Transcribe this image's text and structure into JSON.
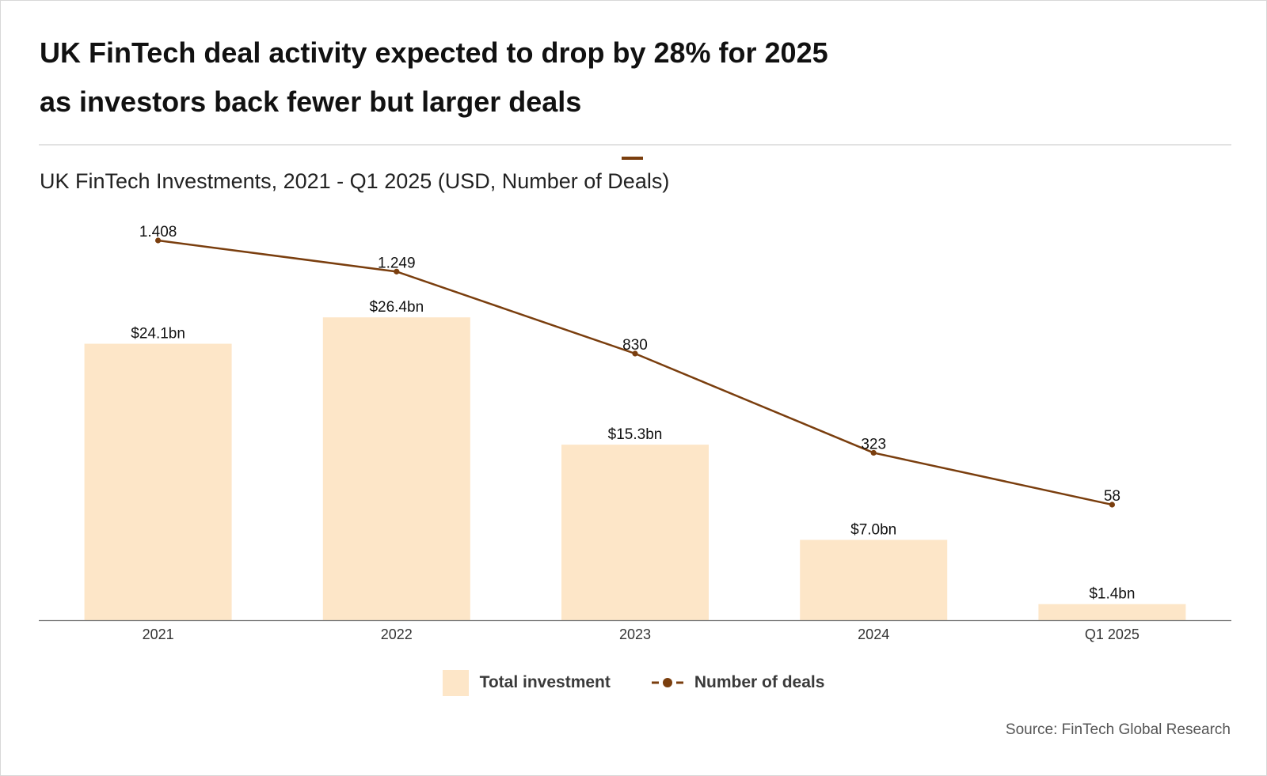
{
  "headline": {
    "line1": "UK FinTech deal activity expected to drop by 28% for 2025",
    "line2": "as investors back fewer but larger deals"
  },
  "source": "Source: FinTech Global Research",
  "colors": {
    "bar": "#fde6c8",
    "line": "#7a3e0e",
    "axis": "#777777",
    "text": "#222222"
  },
  "chart_data": {
    "type": "bar",
    "title": "UK FinTech Investments, 2021 - Q1 2025 (USD, Number of Deals)",
    "categories": [
      "2021",
      "2022",
      "2023",
      "2024",
      "Q1 2025"
    ],
    "series": [
      {
        "name": "Total investment",
        "type": "bar",
        "unit": "USD bn",
        "values": [
          24.1,
          26.4,
          15.3,
          7.0,
          1.4
        ],
        "labels": [
          "$24.1bn",
          "$26.4bn",
          "$15.3bn",
          "$7.0bn",
          "$1.4bn"
        ]
      },
      {
        "name": "Number of deals",
        "type": "line",
        "values": [
          1408,
          1249,
          830,
          323,
          58
        ],
        "labels": [
          "1.408",
          "1.249",
          "830",
          "323",
          "58"
        ]
      }
    ],
    "xlabel": "",
    "ylabel": "",
    "grid": false,
    "legend": "bottom-center"
  }
}
